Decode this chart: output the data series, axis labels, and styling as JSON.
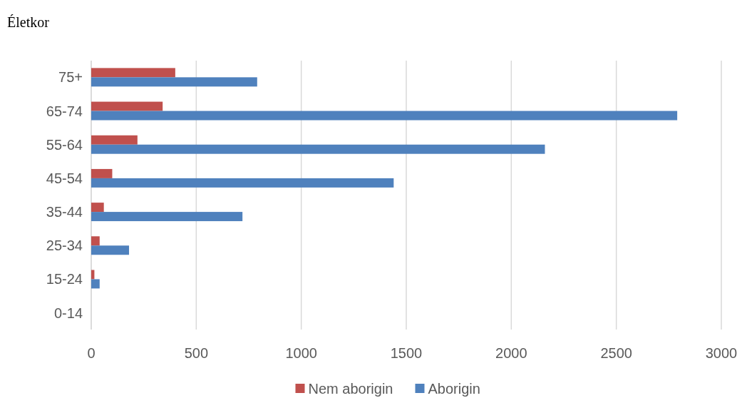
{
  "chart_data": {
    "type": "bar",
    "orientation": "horizontal",
    "title": "Életkor",
    "categories": [
      "75+",
      "65-74",
      "55-64",
      "45-54",
      "35-44",
      "25-34",
      "15-24",
      "0-14"
    ],
    "series": [
      {
        "name": "Nem aborigin",
        "color": "#c0504d",
        "values": [
          400,
          340,
          220,
          100,
          60,
          40,
          15,
          0
        ]
      },
      {
        "name": "Aborigin",
        "color": "#4f81bd",
        "values": [
          790,
          2790,
          2160,
          1440,
          720,
          180,
          40,
          0
        ]
      }
    ],
    "xlim": [
      0,
      3000
    ],
    "xticks": [
      0,
      500,
      1000,
      1500,
      2000,
      2500,
      3000
    ],
    "grid": "x",
    "legend": "bottom"
  }
}
